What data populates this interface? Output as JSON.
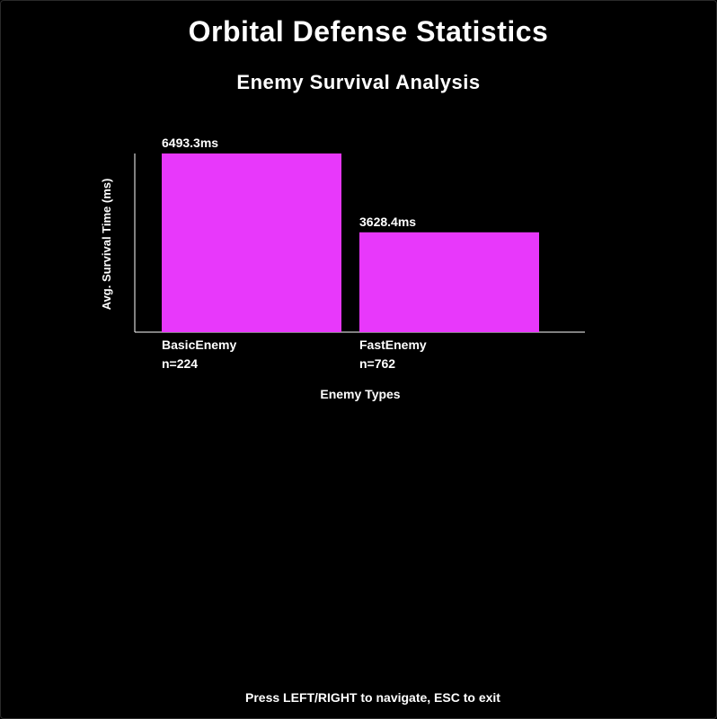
{
  "screen": {
    "title": "Orbital Defense Statistics",
    "footer_hint": "Press LEFT/RIGHT to navigate, ESC to exit"
  },
  "colors": {
    "background": "#000000",
    "bar": "#e838fb",
    "text": "#ffffff",
    "axis": "#ffffff"
  },
  "chart_data": {
    "type": "bar",
    "title": "Enemy Survival Analysis",
    "xlabel": "Enemy Types",
    "ylabel": "Avg. Survival Time (ms)",
    "categories": [
      "BasicEnemy",
      "FastEnemy"
    ],
    "sample_labels": [
      "n=224",
      "n=762"
    ],
    "values": [
      6493.3,
      3628.4
    ],
    "value_labels": [
      "6493.3ms",
      "3628.4ms"
    ],
    "ylim": [
      0,
      6493.3
    ],
    "grid": false,
    "legend": "none"
  }
}
